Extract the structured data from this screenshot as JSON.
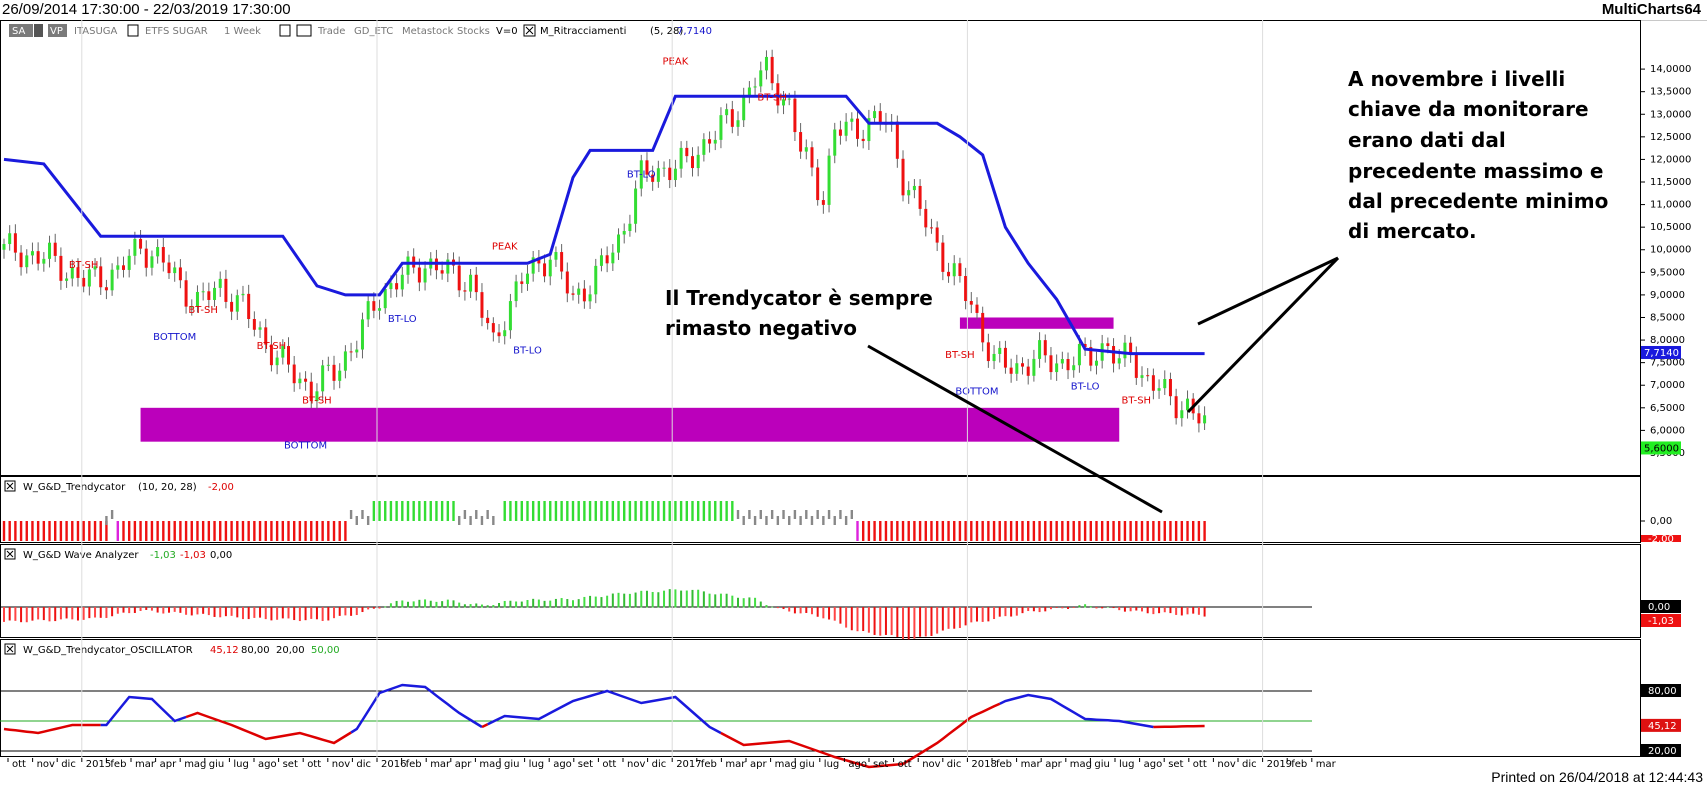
{
  "window": {
    "title": "26/09/2014 17:30:00 - 22/03/2019 17:30:00",
    "app_name": "MultiCharts64"
  },
  "toolbar": {
    "sa": "SA",
    "vp": "VP",
    "symbol": "ITASUGA",
    "description": "ETFS SUGAR",
    "interval": "1 Week",
    "trade": "Trade",
    "feed": "GD_ETC",
    "source": "Metastock",
    "category": "Stocks",
    "volume": "V=0",
    "indicator_name": "M_Ritracciamenti",
    "indicator_params": "(5, 28)",
    "indicator_value": "7,7140"
  },
  "footer": {
    "printed": "Printed on 26/04/2018 at 12:44:43"
  },
  "colors": {
    "up": "#33dd33",
    "down": "#ee1111",
    "neutral": "#888888",
    "blue_line": "#1a1add",
    "band": "#bb00bb",
    "label_red": "#dd0000",
    "label_blue": "#1515cc"
  },
  "chart_data": [
    {
      "type": "candlestick",
      "panel": "price",
      "y_ticks": [
        "14,0000",
        "13,5000",
        "13,0000",
        "12,5000",
        "12,0000",
        "11,5000",
        "11,0000",
        "10,5000",
        "10,0000",
        "9,5000",
        "9,0000",
        "8,5000",
        "8,0000",
        "7,5000",
        "7,0000",
        "6,5000",
        "6,0000",
        "5,5000"
      ],
      "ylim": [
        5.3,
        14.6
      ],
      "x_ticks": [
        "ott",
        "nov",
        "dic",
        "2015",
        "feb",
        "mar",
        "apr",
        "mag",
        "giu",
        "lug",
        "ago",
        "set",
        "ott",
        "nov",
        "dic",
        "2016",
        "feb",
        "mar",
        "apr",
        "mag",
        "giu",
        "lug",
        "ago",
        "set",
        "ott",
        "nov",
        "dic",
        "2017",
        "feb",
        "mar",
        "apr",
        "mag",
        "giu",
        "lug",
        "ago",
        "set",
        "ott",
        "nov",
        "dic",
        "2018",
        "feb",
        "mar",
        "apr",
        "mag",
        "giu",
        "lug",
        "ago",
        "set",
        "ott",
        "nov",
        "dic",
        "2019",
        "feb",
        "mar"
      ],
      "close_path": [
        [
          0,
          10.0
        ],
        [
          8,
          9.8
        ],
        [
          14,
          9.3
        ],
        [
          20,
          9.5
        ],
        [
          24,
          10.1
        ],
        [
          28,
          9.7
        ],
        [
          34,
          8.8
        ],
        [
          38,
          9.2
        ],
        [
          42,
          8.7
        ],
        [
          48,
          7.6
        ],
        [
          54,
          6.9
        ],
        [
          58,
          7.3
        ],
        [
          62,
          8.0
        ],
        [
          66,
          9.0
        ],
        [
          70,
          9.4
        ],
        [
          74,
          9.7
        ],
        [
          78,
          9.5
        ],
        [
          82,
          9.3
        ],
        [
          86,
          7.9
        ],
        [
          88,
          8.6
        ],
        [
          92,
          9.5
        ],
        [
          96,
          9.9
        ],
        [
          100,
          8.9
        ],
        [
          104,
          9.4
        ],
        [
          108,
          10.2
        ],
        [
          112,
          11.6
        ],
        [
          116,
          11.8
        ],
        [
          120,
          11.9
        ],
        [
          124,
          12.5
        ],
        [
          128,
          12.9
        ],
        [
          132,
          13.8
        ],
        [
          134,
          13.9
        ],
        [
          138,
          13.2
        ],
        [
          140,
          12.2
        ],
        [
          144,
          11.2
        ],
        [
          146,
          12.6
        ],
        [
          150,
          12.7
        ],
        [
          154,
          12.9
        ],
        [
          156,
          12.6
        ],
        [
          158,
          11.6
        ],
        [
          162,
          10.6
        ],
        [
          166,
          9.6
        ],
        [
          170,
          8.8
        ],
        [
          174,
          7.5
        ],
        [
          178,
          7.4
        ],
        [
          182,
          7.6
        ],
        [
          186,
          7.5
        ],
        [
          190,
          7.6
        ],
        [
          194,
          7.9
        ],
        [
          196,
          7.4
        ],
        [
          198,
          7.8
        ],
        [
          200,
          7.2
        ],
        [
          204,
          6.8
        ],
        [
          208,
          6.5
        ],
        [
          211,
          6.1
        ]
      ],
      "highs_lows": [
        {
          "at": 0,
          "high": 10.4,
          "low": 9.5
        },
        {
          "at": 16,
          "high": 10.8,
          "low": 9.0
        },
        {
          "at": 54,
          "high": 7.8,
          "low": 6.7
        },
        {
          "at": 98,
          "high": 10.3,
          "low": 9.5
        },
        {
          "at": 134,
          "high": 14.1,
          "low": 13.3
        }
      ]
    },
    {
      "type": "line",
      "panel": "price",
      "name": "M_Ritracciamenti",
      "points": [
        [
          0,
          12.0
        ],
        [
          7,
          11.9
        ],
        [
          17,
          10.3
        ],
        [
          49,
          10.3
        ],
        [
          55,
          9.2
        ],
        [
          60,
          9.0
        ],
        [
          66,
          9.0
        ],
        [
          70,
          9.7
        ],
        [
          92,
          9.7
        ],
        [
          96,
          9.9
        ],
        [
          100,
          11.6
        ],
        [
          103,
          12.2
        ],
        [
          114,
          12.2
        ],
        [
          118,
          13.4
        ],
        [
          148,
          13.4
        ],
        [
          152,
          12.8
        ],
        [
          164,
          12.8
        ],
        [
          168,
          12.5
        ],
        [
          172,
          12.1
        ],
        [
          176,
          10.5
        ],
        [
          180,
          9.7
        ],
        [
          185,
          8.9
        ],
        [
          190,
          7.8
        ],
        [
          198,
          7.7
        ],
        [
          211,
          7.7
        ]
      ],
      "last_value": "7,7140",
      "close_value": "5,6000"
    },
    {
      "type": "bar",
      "panel": "trendycator",
      "name": "W_G&D_Trendycator",
      "params": "(10, 20, 28)",
      "value": "-2,00",
      "y_tick": "0,00",
      "scale_value": "-2,00",
      "segments": [
        [
          "down",
          0,
          18
        ],
        [
          "neutral",
          18,
          19
        ],
        [
          "magenta",
          20,
          20
        ],
        [
          "down",
          21,
          60
        ],
        [
          "neutral",
          61,
          64
        ],
        [
          "up",
          65,
          79
        ],
        [
          "neutral",
          80,
          86
        ],
        [
          "up",
          88,
          128
        ],
        [
          "neutral",
          129,
          149
        ],
        [
          "magenta",
          150,
          150
        ],
        [
          "down",
          151,
          211
        ]
      ]
    },
    {
      "type": "bar",
      "panel": "wave",
      "name": "W_G&D Wave Analyzer",
      "values_text": [
        "-1,03",
        "-1,03",
        "0,00"
      ],
      "scale_values": [
        "0,00",
        "-1,03"
      ],
      "wave_points": [
        [
          0,
          -0.9
        ],
        [
          16,
          -0.7
        ],
        [
          24,
          -0.2
        ],
        [
          32,
          -0.4
        ],
        [
          44,
          -0.7
        ],
        [
          56,
          -0.8
        ],
        [
          62,
          -0.4
        ],
        [
          70,
          0.4
        ],
        [
          78,
          0.4
        ],
        [
          84,
          0.1
        ],
        [
          90,
          0.4
        ],
        [
          100,
          0.5
        ],
        [
          110,
          0.9
        ],
        [
          120,
          1.1
        ],
        [
          132,
          0.5
        ],
        [
          136,
          -0.1
        ],
        [
          144,
          -0.6
        ],
        [
          150,
          -1.5
        ],
        [
          160,
          -2.0
        ],
        [
          170,
          -1.0
        ],
        [
          180,
          -0.3
        ],
        [
          190,
          0.1
        ],
        [
          200,
          -0.3
        ],
        [
          211,
          -0.5
        ]
      ]
    },
    {
      "type": "line",
      "panel": "oscillator",
      "name": "W_G&D_Trendycator_OSCILLATOR",
      "values_text": [
        "45,12",
        "80,00",
        "20,00",
        "50,00"
      ],
      "scale_values": [
        "80,00",
        "45,12",
        "20,00"
      ],
      "levels": [
        80,
        50,
        20
      ],
      "ylim": [
        0,
        100
      ],
      "points": [
        [
          0,
          42
        ],
        [
          6,
          38
        ],
        [
          12,
          46
        ],
        [
          18,
          46
        ],
        [
          22,
          74
        ],
        [
          26,
          72
        ],
        [
          30,
          50
        ],
        [
          34,
          58
        ],
        [
          40,
          46
        ],
        [
          46,
          32
        ],
        [
          52,
          38
        ],
        [
          58,
          28
        ],
        [
          62,
          42
        ],
        [
          66,
          78
        ],
        [
          70,
          86
        ],
        [
          74,
          84
        ],
        [
          80,
          58
        ],
        [
          84,
          44
        ],
        [
          88,
          55
        ],
        [
          94,
          52
        ],
        [
          100,
          70
        ],
        [
          106,
          80
        ],
        [
          112,
          68
        ],
        [
          118,
          74
        ],
        [
          124,
          44
        ],
        [
          130,
          26
        ],
        [
          138,
          30
        ],
        [
          146,
          14
        ],
        [
          152,
          4
        ],
        [
          158,
          7
        ],
        [
          164,
          28
        ],
        [
          170,
          54
        ],
        [
          176,
          70
        ],
        [
          180,
          76
        ],
        [
          184,
          72
        ],
        [
          190,
          52
        ],
        [
          196,
          50
        ],
        [
          202,
          44
        ],
        [
          211,
          45
        ]
      ],
      "blue_ranges": [
        [
          18,
          32
        ],
        [
          62,
          84
        ],
        [
          86,
          126
        ],
        [
          176,
          202
        ]
      ]
    }
  ],
  "event_labels": [
    {
      "text": "BT-SH",
      "at": 14,
      "price": 9.6,
      "color": "red"
    },
    {
      "text": "BOTTOM",
      "at": 30,
      "price": 8.0,
      "color": "blue"
    },
    {
      "text": "BT-SH",
      "at": 35,
      "price": 8.6,
      "color": "red"
    },
    {
      "text": "BT-SH",
      "at": 47,
      "price": 7.8,
      "color": "red"
    },
    {
      "text": "BT-SH",
      "at": 55,
      "price": 6.6,
      "color": "red"
    },
    {
      "text": "BOTTOM",
      "at": 53,
      "price": 5.6,
      "color": "blue"
    },
    {
      "text": "BT-LO",
      "at": 70,
      "price": 8.4,
      "color": "blue"
    },
    {
      "text": "PEAK",
      "at": 88,
      "price": 10.0,
      "color": "red"
    },
    {
      "text": "BT-LO",
      "at": 92,
      "price": 7.7,
      "color": "blue"
    },
    {
      "text": "BT-LO",
      "at": 112,
      "price": 11.6,
      "color": "blue"
    },
    {
      "text": "PEAK",
      "at": 118,
      "price": 14.1,
      "color": "red"
    },
    {
      "text": "BT-SH",
      "at": 135,
      "price": 13.3,
      "color": "red"
    },
    {
      "text": "BT-SH",
      "at": 168,
      "price": 7.6,
      "color": "red"
    },
    {
      "text": "BOTTOM",
      "at": 171,
      "price": 6.8,
      "color": "blue"
    },
    {
      "text": "BT-LO",
      "at": 190,
      "price": 6.9,
      "color": "blue"
    },
    {
      "text": "BT-SH",
      "at": 199,
      "price": 6.6,
      "color": "red"
    }
  ],
  "bands": [
    {
      "x_from": 24,
      "x_to": 196,
      "price_top": 6.5,
      "price_bottom": 5.75
    },
    {
      "x_from": 168,
      "x_to": 195,
      "price_top": 8.5,
      "price_bottom": 8.25
    }
  ],
  "annotations": {
    "right_lines": [
      "A novembre i livelli",
      "chiave da monitorare",
      "erano dati dal",
      "precedente massimo e",
      "dal precedente minimo",
      "di mercato."
    ],
    "left_lines": [
      "Il Trendycator è sempre",
      "rimasto negativo"
    ]
  }
}
